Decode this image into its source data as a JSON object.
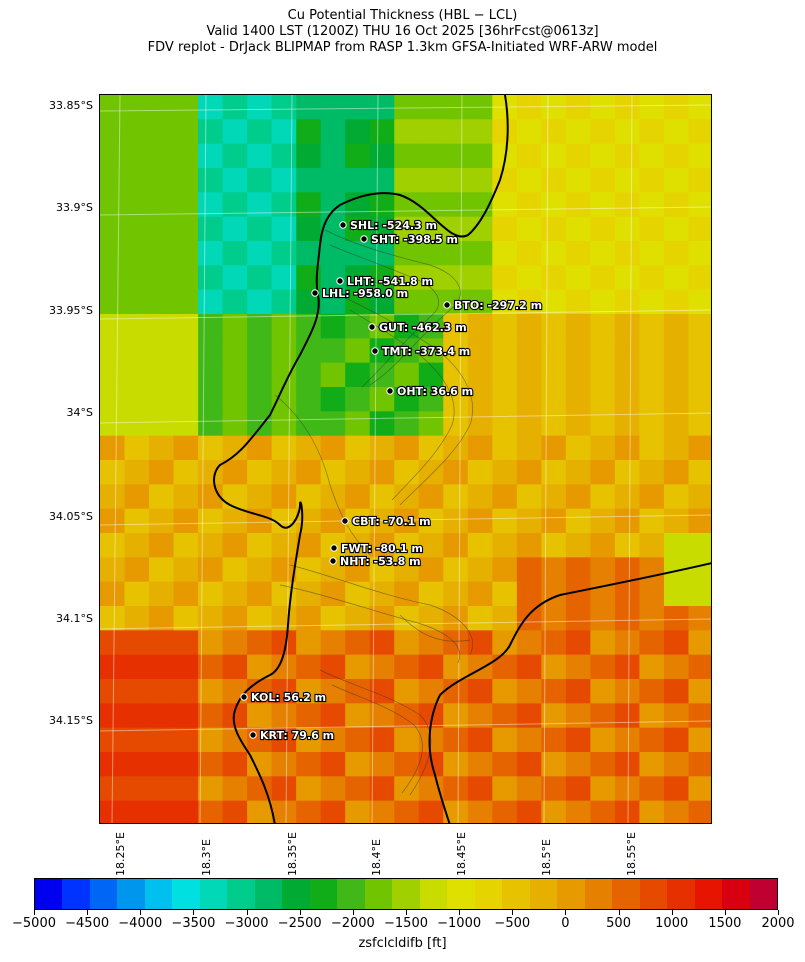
{
  "title": {
    "line1": "Cu Potential Thickness (HBL − LCL)",
    "line2": "Valid 1400 LST (1200Z) THU 16 Oct 2025 [36hrFcst@0613z]",
    "line3": "FDV replot - DrJack BLIPMAP from RASP 1.3km GFSA-Initiated WRF-ARW model"
  },
  "axes": {
    "lat_labels": [
      "33.85°S",
      "33.9°S",
      "33.95°S",
      "34°S",
      "34.05°S",
      "34.1°S",
      "34.15°S"
    ],
    "lon_labels": [
      "18.25°E",
      "18.3°E",
      "18.35°E",
      "18.4°E",
      "18.45°E",
      "18.5°E",
      "18.55°E"
    ]
  },
  "stations": [
    {
      "label": "SHL: -524.3 m"
    },
    {
      "label": "SHT: -398.5 m"
    },
    {
      "label": "LHT: -541.8 m"
    },
    {
      "label": "LHL: -958.0 m"
    },
    {
      "label": "BTO: -297.2 m"
    },
    {
      "label": "GUT: -462.3 m"
    },
    {
      "label": "TMT: -373.4 m"
    },
    {
      "label": "OHT: 36.6 m"
    },
    {
      "label": "CBT: -70.1 m"
    },
    {
      "label": "FWT: -80.1 m"
    },
    {
      "label": "NHT: -53.8 m"
    },
    {
      "label": "KOL: 56.2 m"
    },
    {
      "label": "KRT: 79.6 m"
    }
  ],
  "colorbar": {
    "label": "zsfclcldifb [ft]",
    "ticks": [
      "−5000",
      "−4500",
      "−4000",
      "−3500",
      "−3000",
      "−2500",
      "−2000",
      "−1500",
      "−1000",
      "−500",
      "0",
      "500",
      "1000",
      "1500",
      "2000"
    ],
    "colors": [
      "#0000f0",
      "#0033ff",
      "#0066f5",
      "#0096ee",
      "#00c0f0",
      "#00e0e0",
      "#00d8b8",
      "#00cc8c",
      "#00bb66",
      "#00aa33",
      "#10ad18",
      "#40b818",
      "#70c400",
      "#a0d000",
      "#c8dc00",
      "#e0e000",
      "#e6d400",
      "#e6c200",
      "#e6b000",
      "#e69a00",
      "#e68000",
      "#e66400",
      "#e64a00",
      "#e63000",
      "#e61400",
      "#d80010",
      "#c00030"
    ]
  }
}
